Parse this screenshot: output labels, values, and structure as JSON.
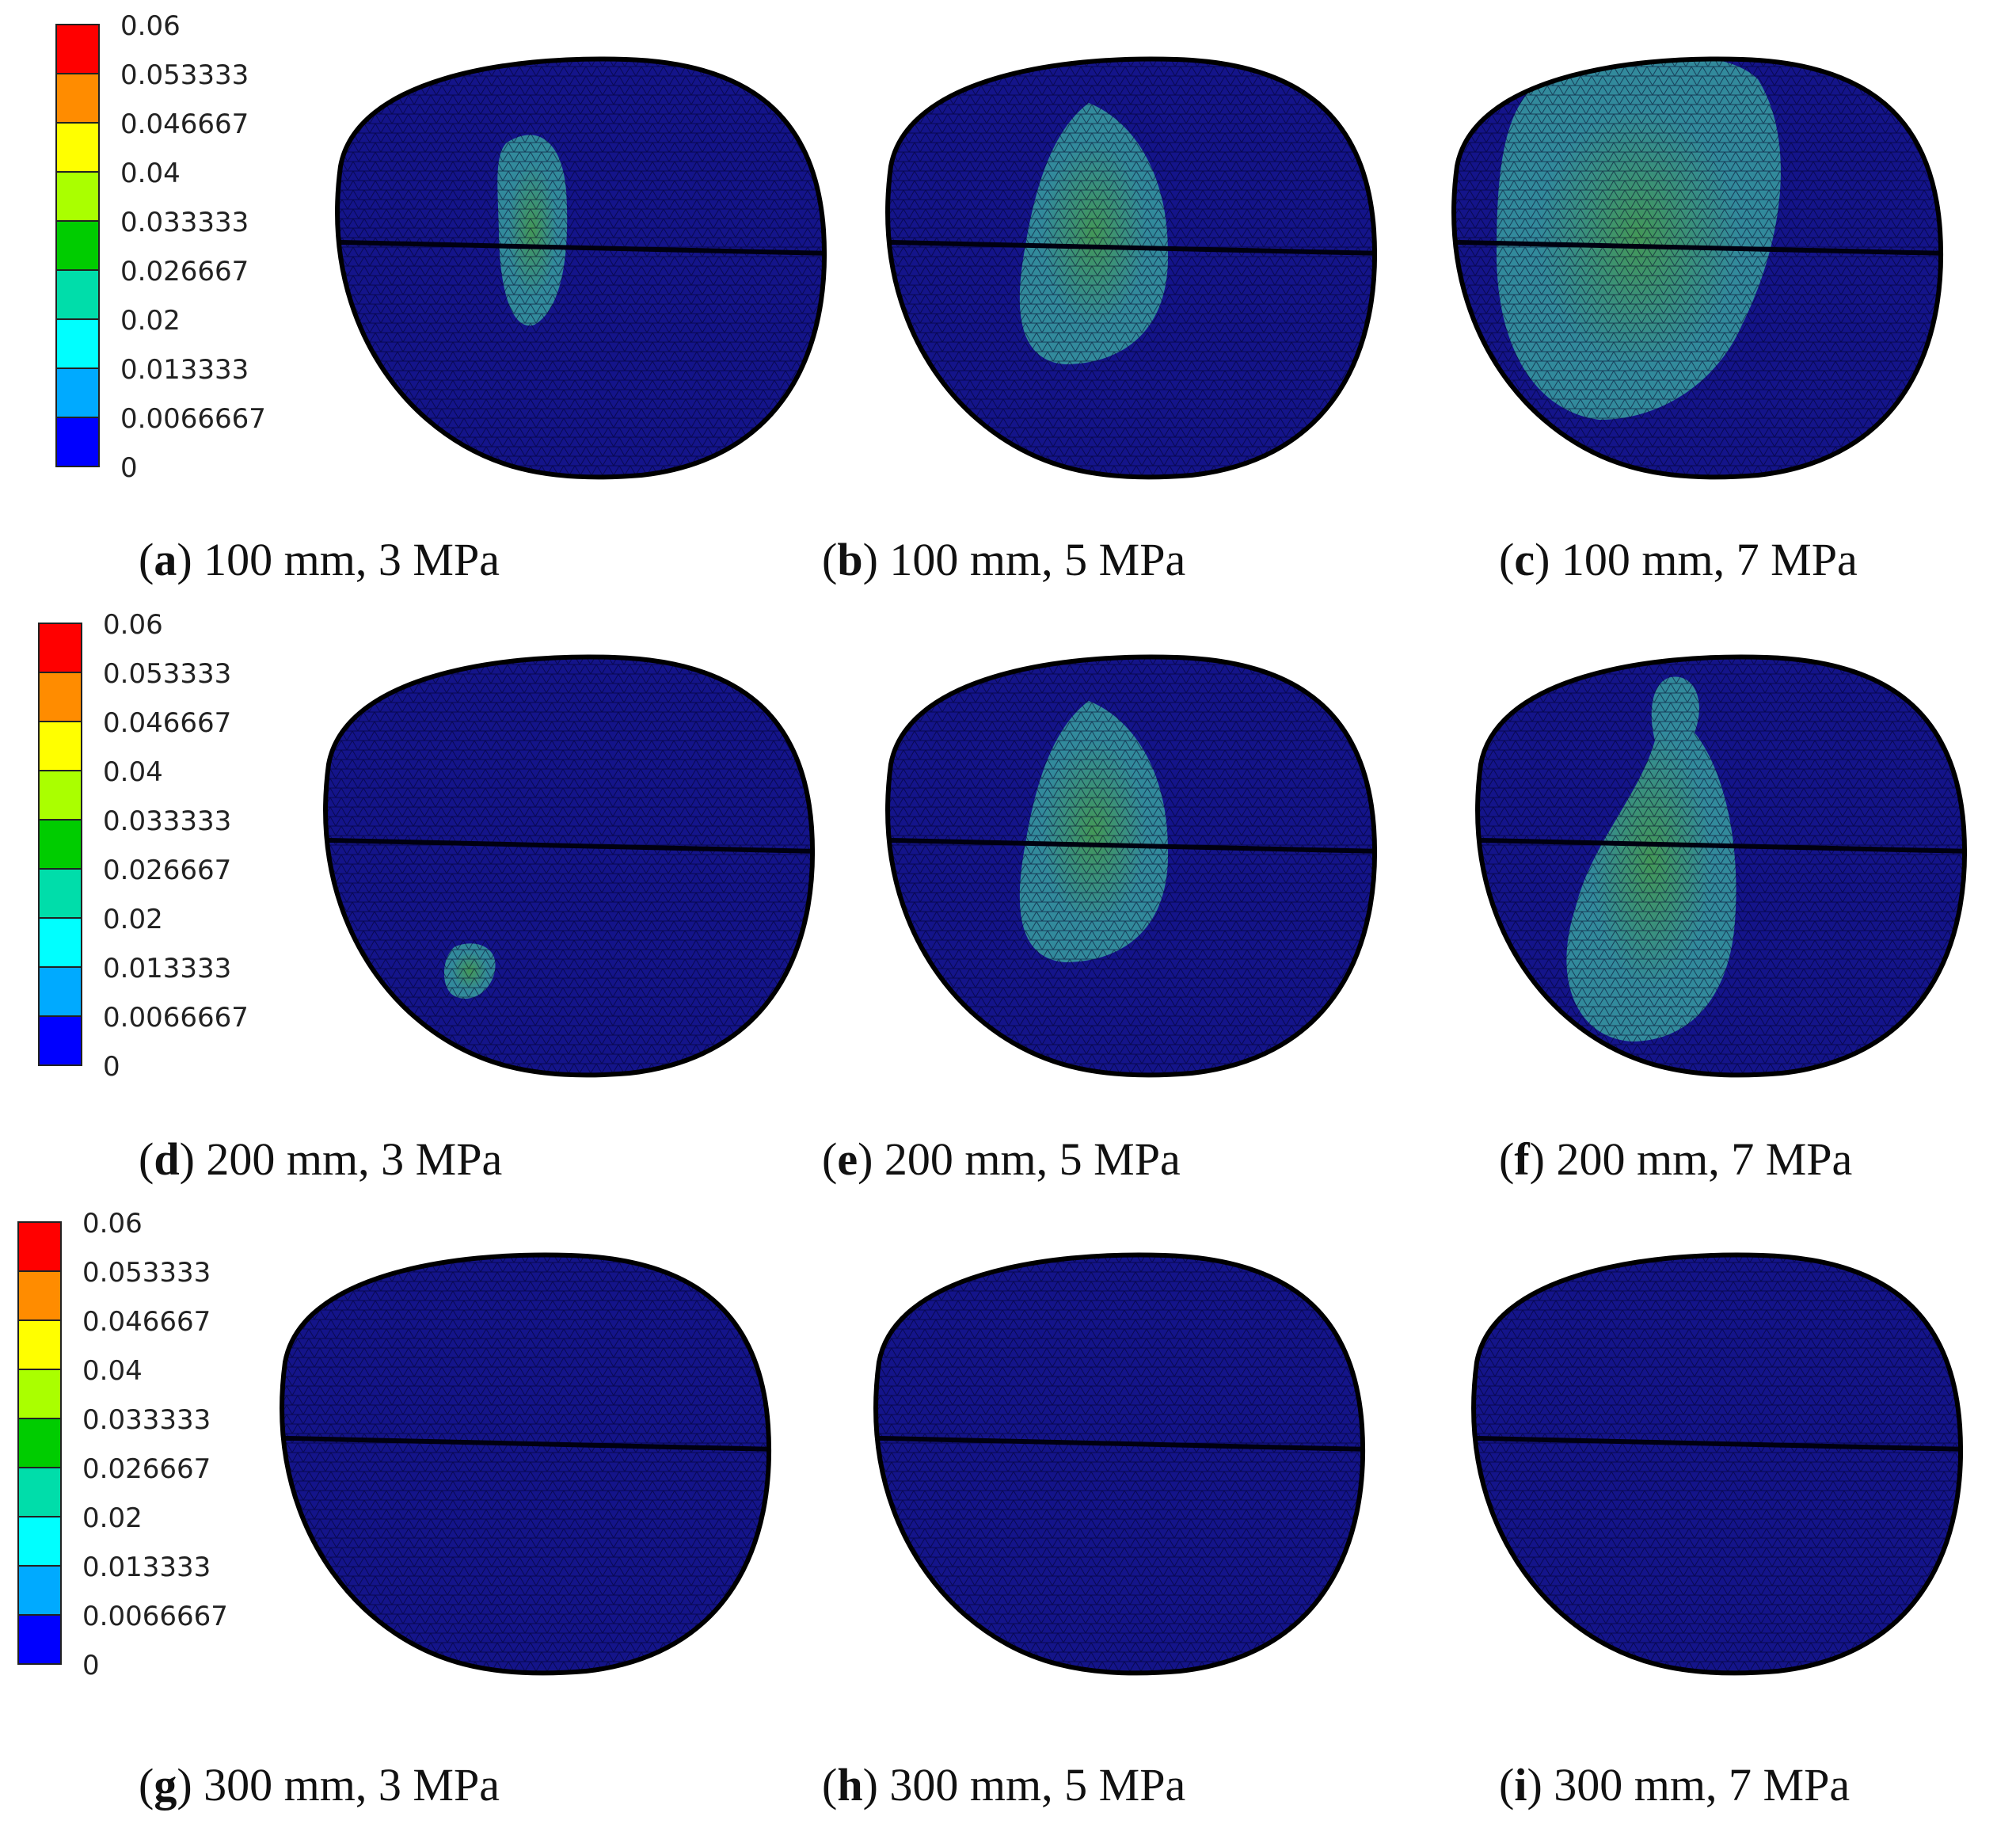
{
  "colors": {
    "background": "#ffffff",
    "mesh_base": "#14148a",
    "mesh_line": "#000022",
    "hotspot": "#3aa8a0",
    "hotspot_core": "#4fb84a"
  },
  "legend": {
    "ticks": [
      "0.06",
      "0.053333",
      "0.046667",
      "0.04",
      "0.033333",
      "0.026667",
      "0.02",
      "0.013333",
      "0.0066667",
      "0"
    ],
    "colors": [
      "#ff0000",
      "#ff8c00",
      "#ffff00",
      "#aaff00",
      "#00cc00",
      "#00ddaa",
      "#00ffff",
      "#00aaff",
      "#0000ff"
    ]
  },
  "panels": [
    {
      "letter": "a",
      "text": " 100 mm, 3 MPa",
      "hotspot": "small"
    },
    {
      "letter": "b",
      "text": " 100 mm, 5 MPa",
      "hotspot": "medium"
    },
    {
      "letter": "c",
      "text": " 100 mm, 7 MPa",
      "hotspot": "large"
    },
    {
      "letter": "d",
      "text": " 200 mm, 3 MPa",
      "hotspot": "tiny"
    },
    {
      "letter": "e",
      "text": " 200 mm, 5 MPa",
      "hotspot": "medium"
    },
    {
      "letter": "f",
      "text": " 200 mm, 7 MPa",
      "hotspot": "tall"
    },
    {
      "letter": "g",
      "text": " 300 mm, 3 MPa",
      "hotspot": "none"
    },
    {
      "letter": "h",
      "text": " 300 mm, 5 MPa",
      "hotspot": "none"
    },
    {
      "letter": "i",
      "text": " 300 mm, 7 MPa",
      "hotspot": "none"
    }
  ]
}
